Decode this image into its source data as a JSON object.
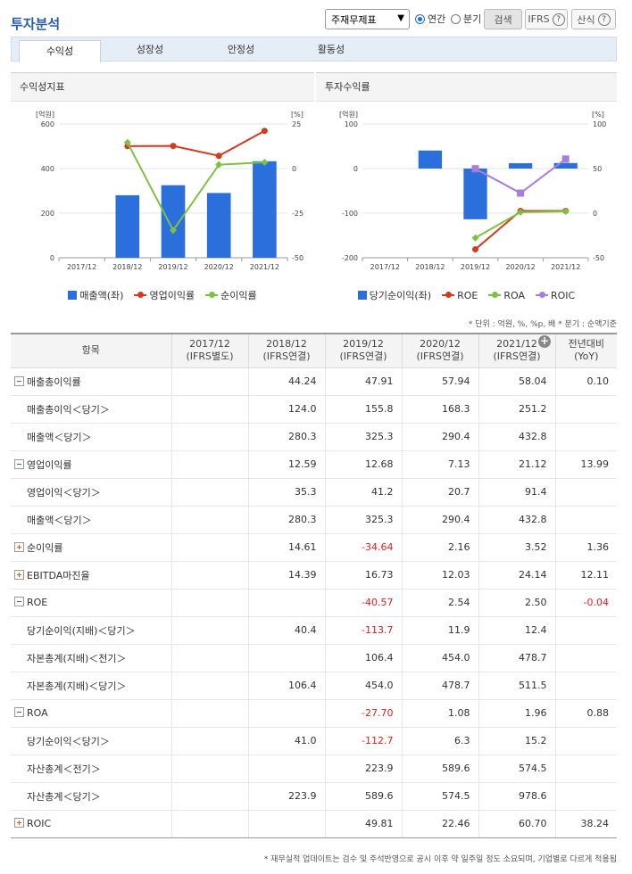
{
  "header": {
    "title": "투자분석",
    "select_value": "주재무제표",
    "radio_annual": "연간",
    "radio_quarter": "분기",
    "search_label": "검색",
    "ifrs_label": "IFRS",
    "formula_label": "산식",
    "question_mark": "?"
  },
  "tabs": [
    {
      "label": "수익성",
      "active": true
    },
    {
      "label": "성장성",
      "active": false
    },
    {
      "label": "안정성",
      "active": false
    },
    {
      "label": "활동성",
      "active": false
    }
  ],
  "chart_data": [
    {
      "type": "bar",
      "title": "수익성지표",
      "left_unit": "[억원]",
      "right_unit": "[%]",
      "categories": [
        "2017/12",
        "2018/12",
        "2019/12",
        "2020/12",
        "2021/12"
      ],
      "ylim": [
        0,
        600
      ],
      "y_ticks": [
        0,
        200,
        400,
        600
      ],
      "y2lim": [
        -50,
        25
      ],
      "y2_ticks": [
        25,
        0,
        -25,
        -50
      ],
      "series": [
        {
          "name": "매출액(좌)",
          "type": "bar",
          "axis": "left",
          "color": "#2a6fdb",
          "values": [
            null,
            280.3,
            325.3,
            290.4,
            432.8
          ]
        },
        {
          "name": "영업이익률",
          "type": "line",
          "axis": "right",
          "color": "#d23c1e",
          "values": [
            null,
            12.59,
            12.68,
            7.13,
            21.12
          ]
        },
        {
          "name": "순이익률",
          "type": "line",
          "axis": "right",
          "color": "#7cc242",
          "values": [
            null,
            14.61,
            -34.64,
            2.16,
            3.52
          ]
        }
      ]
    },
    {
      "type": "bar",
      "title": "투자수익률",
      "left_unit": "[억원]",
      "right_unit": "[%]",
      "categories": [
        "2017/12",
        "2018/12",
        "2019/12",
        "2020/12",
        "2021/12"
      ],
      "ylim": [
        -200,
        100
      ],
      "y_ticks": [
        -200,
        -100,
        0,
        100
      ],
      "y2lim": [
        -50,
        100
      ],
      "y2_ticks": [
        100,
        50,
        0,
        -50
      ],
      "series": [
        {
          "name": "당기순이익(좌)",
          "type": "bar",
          "axis": "left",
          "color": "#2a6fdb",
          "values": [
            null,
            40.4,
            -113.7,
            11.9,
            12.4
          ]
        },
        {
          "name": "ROE",
          "type": "line",
          "axis": "right",
          "color": "#d23c1e",
          "values": [
            null,
            null,
            -40.57,
            2.54,
            2.5
          ]
        },
        {
          "name": "ROA",
          "type": "line",
          "axis": "right",
          "color": "#7cc242",
          "values": [
            null,
            null,
            -27.7,
            1.08,
            1.96
          ]
        },
        {
          "name": "ROIC",
          "type": "line",
          "axis": "right",
          "color": "#a47fdb",
          "values": [
            null,
            null,
            49.81,
            22.46,
            60.7
          ]
        }
      ]
    }
  ],
  "unit_note": "* 단위 : 억원, %, %p, 배   * 분기 : 순액기준",
  "table": {
    "headers": [
      {
        "line1": "항목",
        "line2": ""
      },
      {
        "line1": "2017/12",
        "line2": "(IFRS별도)"
      },
      {
        "line1": "2018/12",
        "line2": "(IFRS연결)"
      },
      {
        "line1": "2019/12",
        "line2": "(IFRS연결)"
      },
      {
        "line1": "2020/12",
        "line2": "(IFRS연결)"
      },
      {
        "line1": "2021/12",
        "line2": "(IFRS연결)"
      },
      {
        "line1": "전년대비",
        "line2": "(YoY)"
      }
    ],
    "rows": [
      {
        "label": "매출총이익률",
        "toggle": "minus",
        "sub": false,
        "values": [
          "",
          "44.24",
          "47.91",
          "57.94",
          "58.04",
          "0.10"
        ]
      },
      {
        "label": "매출총이익＜당기＞",
        "toggle": "",
        "sub": true,
        "values": [
          "",
          "124.0",
          "155.8",
          "168.3",
          "251.2",
          ""
        ]
      },
      {
        "label": "매출액＜당기＞",
        "toggle": "",
        "sub": true,
        "values": [
          "",
          "280.3",
          "325.3",
          "290.4",
          "432.8",
          ""
        ]
      },
      {
        "label": "영업이익률",
        "toggle": "minus",
        "sub": false,
        "values": [
          "",
          "12.59",
          "12.68",
          "7.13",
          "21.12",
          "13.99"
        ]
      },
      {
        "label": "영업이익＜당기＞",
        "toggle": "",
        "sub": true,
        "values": [
          "",
          "35.3",
          "41.2",
          "20.7",
          "91.4",
          ""
        ]
      },
      {
        "label": "매출액＜당기＞",
        "toggle": "",
        "sub": true,
        "values": [
          "",
          "280.3",
          "325.3",
          "290.4",
          "432.8",
          ""
        ]
      },
      {
        "label": "순이익률",
        "toggle": "plus",
        "sub": false,
        "values": [
          "",
          "14.61",
          "-34.64",
          "2.16",
          "3.52",
          "1.36"
        ]
      },
      {
        "label": "EBITDA마진율",
        "toggle": "plus",
        "sub": false,
        "values": [
          "",
          "14.39",
          "16.73",
          "12.03",
          "24.14",
          "12.11"
        ]
      },
      {
        "label": "ROE",
        "toggle": "minus",
        "sub": false,
        "values": [
          "",
          "",
          "-40.57",
          "2.54",
          "2.50",
          "-0.04"
        ]
      },
      {
        "label": "당기순이익(지배)＜당기＞",
        "toggle": "",
        "sub": true,
        "values": [
          "",
          "40.4",
          "-113.7",
          "11.9",
          "12.4",
          ""
        ]
      },
      {
        "label": "자본총계(지배)＜전기＞",
        "toggle": "",
        "sub": true,
        "values": [
          "",
          "",
          "106.4",
          "454.0",
          "478.7",
          ""
        ]
      },
      {
        "label": "자본총계(지배)＜당기＞",
        "toggle": "",
        "sub": true,
        "values": [
          "",
          "106.4",
          "454.0",
          "478.7",
          "511.5",
          ""
        ]
      },
      {
        "label": "ROA",
        "toggle": "minus",
        "sub": false,
        "values": [
          "",
          "",
          "-27.70",
          "1.08",
          "1.96",
          "0.88"
        ]
      },
      {
        "label": "당기순이익＜당기＞",
        "toggle": "",
        "sub": true,
        "values": [
          "",
          "41.0",
          "-112.7",
          "6.3",
          "15.2",
          ""
        ]
      },
      {
        "label": "자산총계＜전기＞",
        "toggle": "",
        "sub": true,
        "values": [
          "",
          "",
          "223.9",
          "589.6",
          "574.5",
          ""
        ]
      },
      {
        "label": "자산총계＜당기＞",
        "toggle": "",
        "sub": true,
        "values": [
          "",
          "223.9",
          "589.6",
          "574.5",
          "978.6",
          ""
        ]
      },
      {
        "label": "ROIC",
        "toggle": "plus",
        "sub": false,
        "values": [
          "",
          "",
          "49.81",
          "22.46",
          "60.70",
          "38.24"
        ]
      }
    ]
  },
  "expand_symbol": "+",
  "footnote": "* 재무실적 업데이트는 검수 및 주석반영으로 공시 이후 약 일주일 정도 소요되며, 기업별로 다르게 적용됨"
}
